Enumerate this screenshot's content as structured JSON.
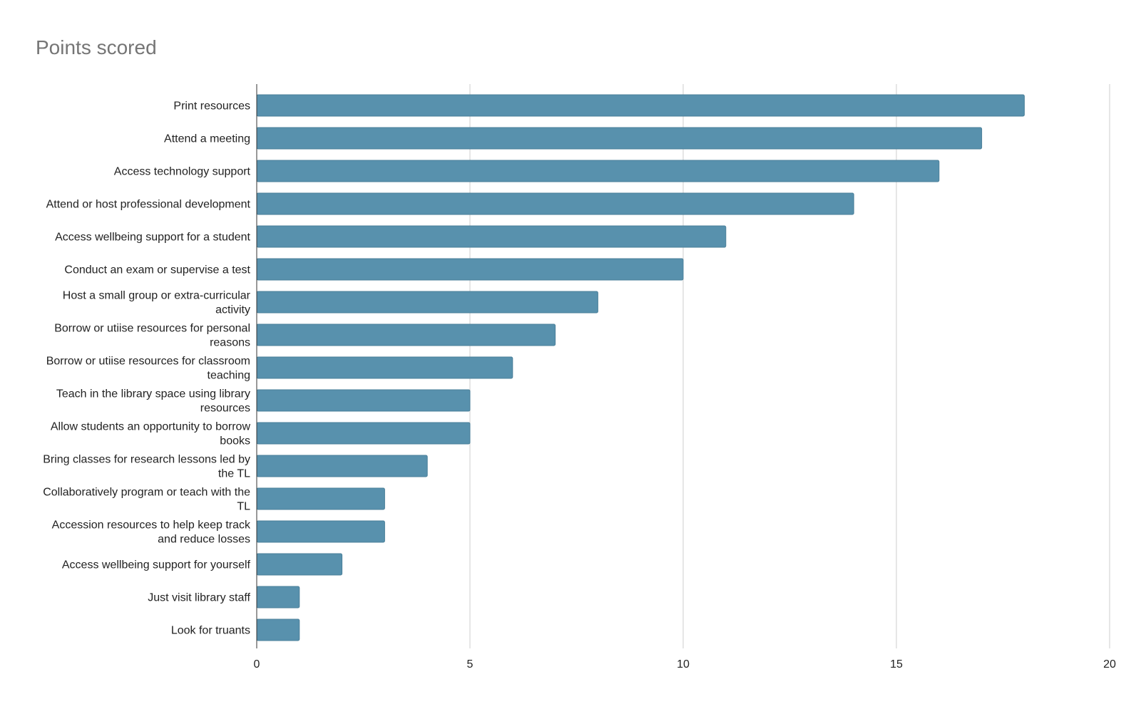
{
  "chart_data": {
    "type": "bar",
    "orientation": "horizontal",
    "title": "Points scored",
    "xlabel": "",
    "ylabel": "",
    "xlim": [
      0,
      20
    ],
    "x_ticks": [
      0,
      5,
      10,
      15,
      20
    ],
    "grid": true,
    "legend": "none",
    "bar_color": "#5891ad",
    "categories": [
      "Print resources",
      "Attend a meeting",
      "Access technology support",
      "Attend or host professional development",
      "Access wellbeing support for a student",
      "Conduct an exam or supervise a test",
      "Host a small group or extra-curricular activity",
      "Borrow or utiise resources for personal reasons",
      "Borrow or utiise resources for classroom teaching",
      "Teach in the library space using library resources",
      "Allow students an opportunity to borrow books",
      "Bring classes for research lessons led by the TL",
      "Collaboratively program or teach with the TL",
      "Accession resources to help keep track and reduce losses",
      "Access wellbeing support for yourself",
      "Just visit library staff",
      "Look for truants"
    ],
    "values": [
      18,
      17,
      16,
      14,
      11,
      10,
      8,
      7,
      6,
      5,
      5,
      4,
      3,
      3,
      2,
      1,
      1
    ]
  }
}
